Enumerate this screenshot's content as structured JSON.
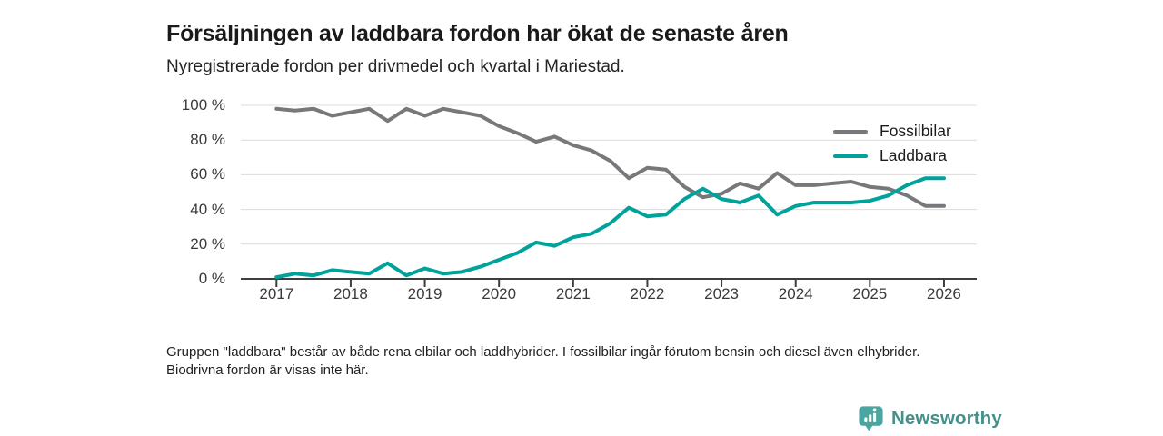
{
  "header": {
    "title": "Försäljningen av laddbara fordon har ökat de senaste åren",
    "subtitle": "Nyregistrerade fordon per drivmedel och kvartal i Mariestad."
  },
  "chart_data": {
    "type": "line",
    "title": "Försäljningen av laddbara fordon har ökat de senaste åren",
    "subtitle": "Nyregistrerade fordon per drivmedel och kvartal i Mariestad.",
    "x_unit": "quarter",
    "x_start": "2017 Q1",
    "x_end": "2026 Q1",
    "x_tick_labels": [
      "2017",
      "2018",
      "2019",
      "2020",
      "2021",
      "2022",
      "2023",
      "2024",
      "2025",
      "2026"
    ],
    "y_tick_labels": [
      "100 %",
      "80 %",
      "60 %",
      "40 %",
      "20 %",
      "0 %"
    ],
    "y_ticks": [
      100,
      80,
      60,
      40,
      20,
      0
    ],
    "ylim": [
      0,
      100
    ],
    "ylabel": "",
    "xlabel": "",
    "grid": "horizontal",
    "legend_position": "top-right",
    "series": [
      {
        "name": "Fossilbilar",
        "color": "#77787b",
        "values": [
          98,
          97,
          98,
          94,
          96,
          98,
          91,
          98,
          94,
          98,
          96,
          94,
          88,
          84,
          79,
          82,
          77,
          74,
          68,
          58,
          64,
          63,
          53,
          47,
          49,
          55,
          52,
          61,
          54,
          54,
          55,
          56,
          53,
          52,
          48,
          42,
          42
        ]
      },
      {
        "name": "Laddbara",
        "color": "#00a39b",
        "values": [
          1,
          3,
          2,
          5,
          4,
          3,
          9,
          2,
          6,
          3,
          4,
          7,
          11,
          15,
          21,
          19,
          24,
          26,
          32,
          41,
          36,
          37,
          46,
          52,
          46,
          44,
          48,
          37,
          42,
          44,
          44,
          44,
          45,
          48,
          54,
          58,
          58
        ]
      }
    ],
    "axis_color": "#3d3d3d",
    "gridline_color": "#dcdcdc"
  },
  "footnote": {
    "text": "Gruppen \"laddbara\" består av både rena elbilar och laddhybrider. I fossilbilar ingår förutom bensin och diesel även elhybrider. Biodrivna fordon är visas inte här."
  },
  "logo": {
    "text": "Newsworthy",
    "icon": "bar-chart-pin-icon",
    "icon_color": "#4ba6a1",
    "text_color": "#46908c"
  }
}
